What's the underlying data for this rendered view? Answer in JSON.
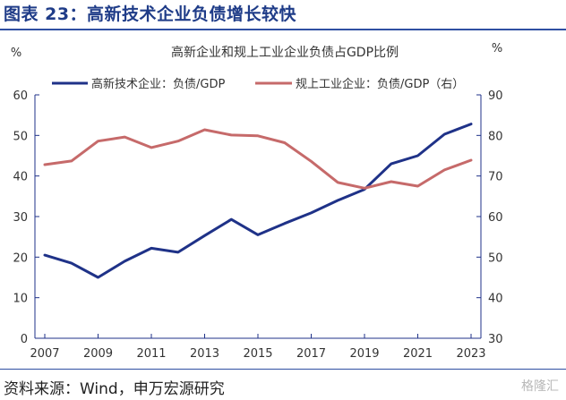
{
  "figure_title": "图表 23：高新技术企业负债增长较快",
  "source": "资料来源：Wind，申万宏源研究",
  "watermark": "格隆汇",
  "chart_data": {
    "type": "line",
    "title": "高新企业和规上工业企业负债占GDP比例",
    "left_unit": "%",
    "right_unit": "%",
    "x": [
      2007,
      2008,
      2009,
      2010,
      2011,
      2012,
      2013,
      2014,
      2015,
      2016,
      2017,
      2018,
      2019,
      2020,
      2021,
      2022,
      2023
    ],
    "x_tick_labels": [
      "2007",
      "2009",
      "2011",
      "2013",
      "2015",
      "2017",
      "2019",
      "2021",
      "2023"
    ],
    "x_ticks": [
      2007,
      2009,
      2011,
      2013,
      2015,
      2017,
      2019,
      2021,
      2023
    ],
    "y_left": {
      "range": [
        0,
        60
      ],
      "ticks": [
        0,
        10,
        20,
        30,
        40,
        50,
        60
      ]
    },
    "y_right": {
      "range": [
        30,
        90
      ],
      "ticks": [
        30,
        40,
        50,
        60,
        70,
        80,
        90
      ]
    },
    "grid": false,
    "legend_position": "top",
    "series": [
      {
        "name": "高新技术企业：负债/GDP",
        "axis": "left",
        "color": "#1f3288",
        "values": [
          20.5,
          18.5,
          15.0,
          19.0,
          22.2,
          21.2,
          25.3,
          29.3,
          25.5,
          28.3,
          30.9,
          34.0,
          36.7,
          43.0,
          45.0,
          50.3,
          52.8
        ]
      },
      {
        "name": "规上工业企业：负债/GDP（右）",
        "axis": "right",
        "color": "#c66a6a",
        "values": [
          72.8,
          73.7,
          78.6,
          79.6,
          77.0,
          78.6,
          81.4,
          80.1,
          79.9,
          78.2,
          73.6,
          68.4,
          67.0,
          68.6,
          67.5,
          71.5,
          73.9
        ]
      }
    ]
  }
}
